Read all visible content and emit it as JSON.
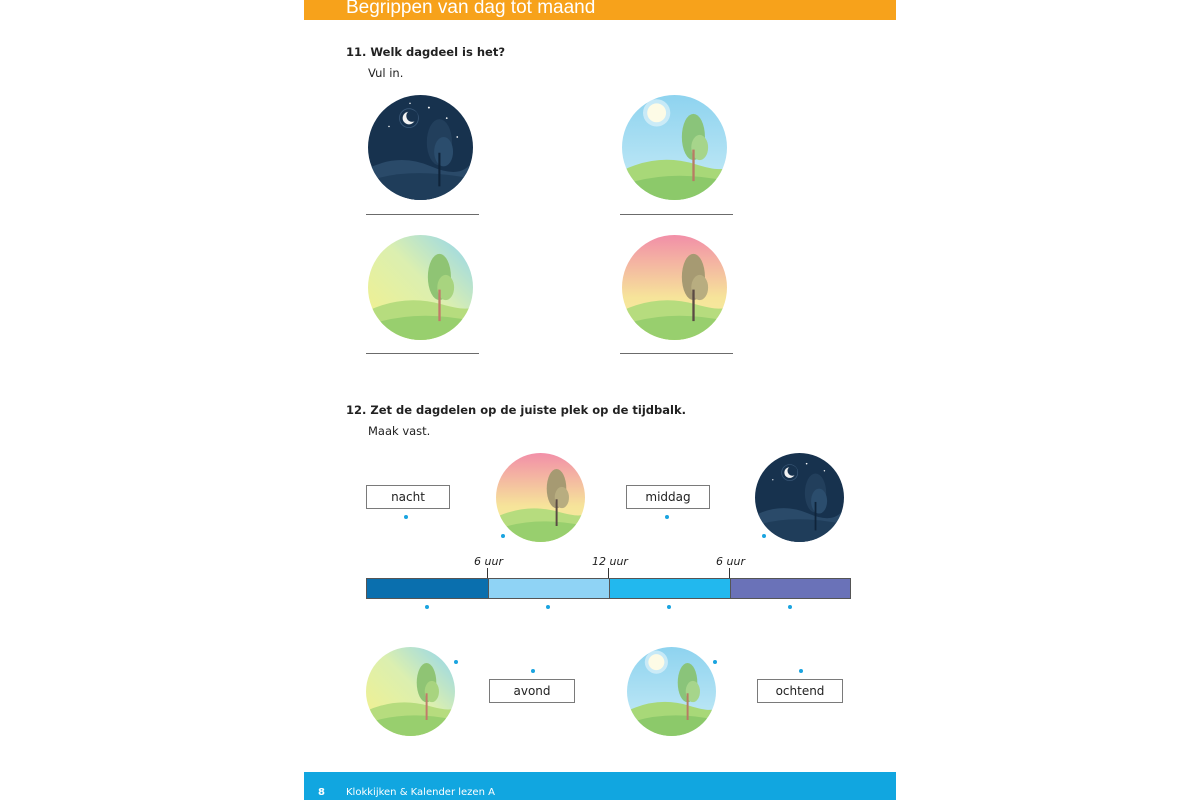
{
  "header": {
    "title": "Begrippen van dag tot maand",
    "color": "#f7a21b"
  },
  "question11": {
    "title": "11. Welk dagdeel is het?",
    "instruction": "Vul in.",
    "scenes": [
      "night-scene",
      "afternoon-scene",
      "morning-scene",
      "evening-scene"
    ]
  },
  "question12": {
    "title": "12. Zet de dagdelen op de juiste plek op de tijdbalk.",
    "instruction": "Maak vast.",
    "labels": {
      "nacht": "nacht",
      "middag": "middag",
      "avond": "avond",
      "ochtend": "ochtend"
    },
    "ticks": [
      "6 uur",
      "12 uur",
      "6 uur"
    ],
    "segment_colors": [
      "#0a6fae",
      "#8fd3f5",
      "#22b8ee",
      "#6a72b8"
    ]
  },
  "footer": {
    "page_number": "8",
    "book_title": "Klokkijken & Kalender lezen A",
    "color": "#11a6e0"
  }
}
